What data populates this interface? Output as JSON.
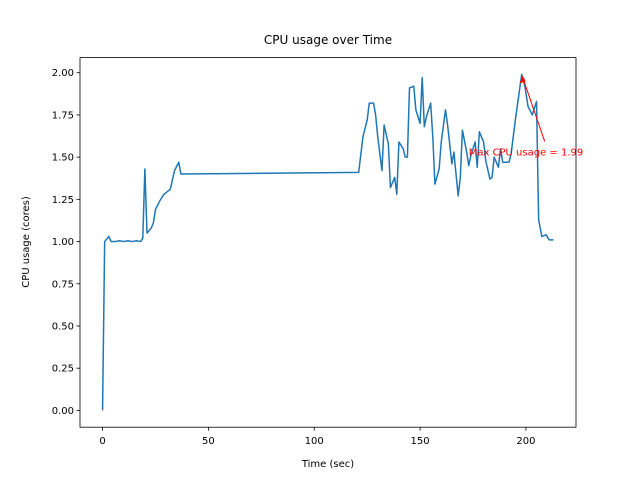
{
  "chart_data": {
    "type": "line",
    "title": "CPU usage over Time",
    "x_label": "Time (sec)",
    "y_label": "CPU usage (cores)",
    "x": [
      0,
      1,
      3,
      4,
      6,
      8,
      10,
      12,
      14,
      16,
      18,
      19,
      20,
      21,
      23,
      24,
      25,
      27,
      29,
      31,
      32,
      34,
      36,
      37,
      121,
      123,
      125,
      126,
      128,
      129,
      130,
      132,
      133,
      135,
      136,
      138,
      139,
      140,
      142,
      143,
      144,
      145,
      147,
      148,
      150,
      151,
      152,
      153,
      155,
      156,
      157,
      159,
      160,
      162,
      163,
      165,
      166,
      166.5,
      168,
      169,
      170,
      172,
      173,
      174,
      176,
      177,
      178,
      180,
      181,
      183,
      184,
      185,
      187,
      188,
      189,
      190,
      192,
      193,
      195,
      198,
      199.5,
      201,
      203,
      205,
      206,
      207.5,
      209.5,
      211,
      213
    ],
    "series": [
      {
        "name": "CPU usage",
        "color": "#1f77b4",
        "values": [
          0.0,
          1.0,
          1.03,
          1.0,
          1.0,
          1.005,
          1.0,
          1.005,
          1.0,
          1.005,
          1.0,
          1.02,
          1.43,
          1.05,
          1.08,
          1.11,
          1.19,
          1.24,
          1.28,
          1.3,
          1.31,
          1.42,
          1.47,
          1.4,
          1.41,
          1.62,
          1.72,
          1.82,
          1.82,
          1.75,
          1.62,
          1.42,
          1.69,
          1.58,
          1.32,
          1.38,
          1.28,
          1.59,
          1.55,
          1.5,
          1.5,
          1.91,
          1.92,
          1.78,
          1.7,
          1.97,
          1.68,
          1.74,
          1.82,
          1.62,
          1.34,
          1.43,
          1.59,
          1.78,
          1.69,
          1.46,
          1.53,
          1.46,
          1.27,
          1.38,
          1.66,
          1.53,
          1.45,
          1.51,
          1.59,
          1.44,
          1.65,
          1.59,
          1.48,
          1.37,
          1.38,
          1.5,
          1.44,
          1.55,
          1.47,
          1.47,
          1.47,
          1.52,
          1.72,
          1.99,
          1.92,
          1.8,
          1.75,
          1.83,
          1.13,
          1.03,
          1.04,
          1.01,
          1.01
        ]
      }
    ],
    "annotation": "Max CPU usage = 1.99",
    "annotation_color": "#ff0000",
    "xlim": [
      -10.65,
      223.65
    ],
    "xticks": [
      0,
      50,
      100,
      150,
      200
    ],
    "ylim": [
      -0.0995,
      2.0895
    ],
    "yticks": [
      {
        "value": 0,
        "label": "0.00"
      },
      {
        "value": 0.25,
        "label": "0.25"
      },
      {
        "value": 0.5,
        "label": "0.50"
      },
      {
        "value": 0.75,
        "label": "0.75"
      },
      {
        "value": 1,
        "label": "1.00"
      },
      {
        "value": 1.25,
        "label": "1.25"
      },
      {
        "value": 1.5,
        "label": "1.50"
      },
      {
        "value": 1.75,
        "label": "1.75"
      },
      {
        "value": 2,
        "label": "2.00"
      }
    ]
  }
}
